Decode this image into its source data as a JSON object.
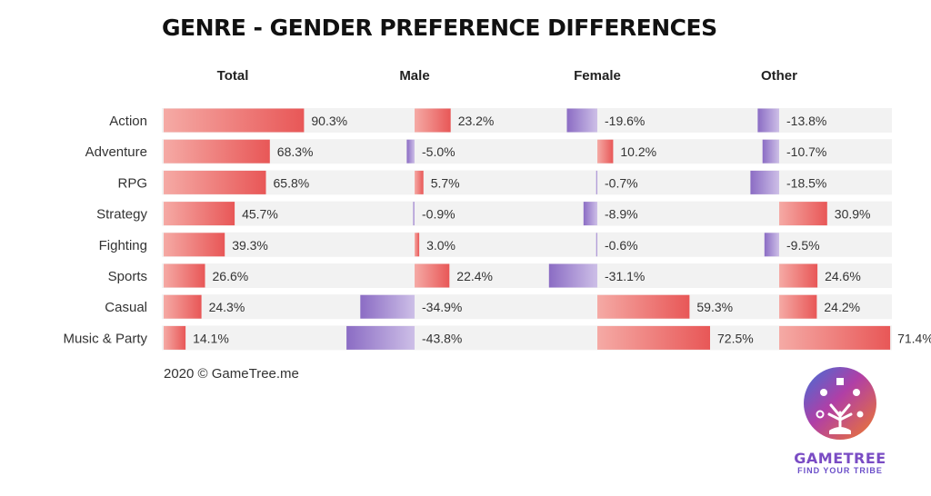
{
  "title": "Genre - Gender Preference Differences",
  "footer": "2020 © GameTree.me",
  "brand": {
    "name": "GAMETREE",
    "tagline": "FIND YOUR TRIBE"
  },
  "colors": {
    "positive": "#e85c5c",
    "positive_light": "#f4a7a3",
    "negative": "#8e72c6",
    "negative_light": "#c9b8e4",
    "row_bg": "#f2f2f2"
  },
  "chart_data": {
    "type": "bar",
    "categories": [
      "Action",
      "Adventure",
      "RPG",
      "Strategy",
      "Fighting",
      "Sports",
      "Casual",
      "Music & Party"
    ],
    "series": [
      {
        "name": "Total",
        "values": [
          90.3,
          68.3,
          65.8,
          45.7,
          39.3,
          26.6,
          24.3,
          14.1
        ]
      },
      {
        "name": "Male",
        "values": [
          23.2,
          -5.0,
          5.7,
          -0.9,
          3.0,
          22.4,
          -34.9,
          -43.8
        ]
      },
      {
        "name": "Female",
        "values": [
          -19.6,
          10.2,
          -0.7,
          -8.9,
          -0.6,
          -31.1,
          59.3,
          72.5
        ]
      },
      {
        "name": "Other",
        "values": [
          -13.8,
          -10.7,
          -18.5,
          30.9,
          -9.5,
          24.6,
          24.2,
          71.4
        ]
      }
    ],
    "value_labels": [
      [
        "90.3%",
        "68.3%",
        "65.8%",
        "45.7%",
        "39.3%",
        "26.6%",
        "24.3%",
        "14.1%"
      ],
      [
        "23.2%",
        "-5.0%",
        "5.7%",
        "-0.9%",
        "3.0%",
        "22.4%",
        "-34.9%",
        "-43.8%"
      ],
      [
        "-19.6%",
        "10.2%",
        "-0.7%",
        "-8.9%",
        "-0.6%",
        "-31.1%",
        "59.3%",
        "72.5%"
      ],
      [
        "-13.8%",
        "-10.7%",
        "-18.5%",
        "30.9%",
        "-9.5%",
        "24.6%",
        "24.2%",
        "71.4%"
      ]
    ],
    "unit": "%",
    "grid": false,
    "legend": "column headers"
  }
}
